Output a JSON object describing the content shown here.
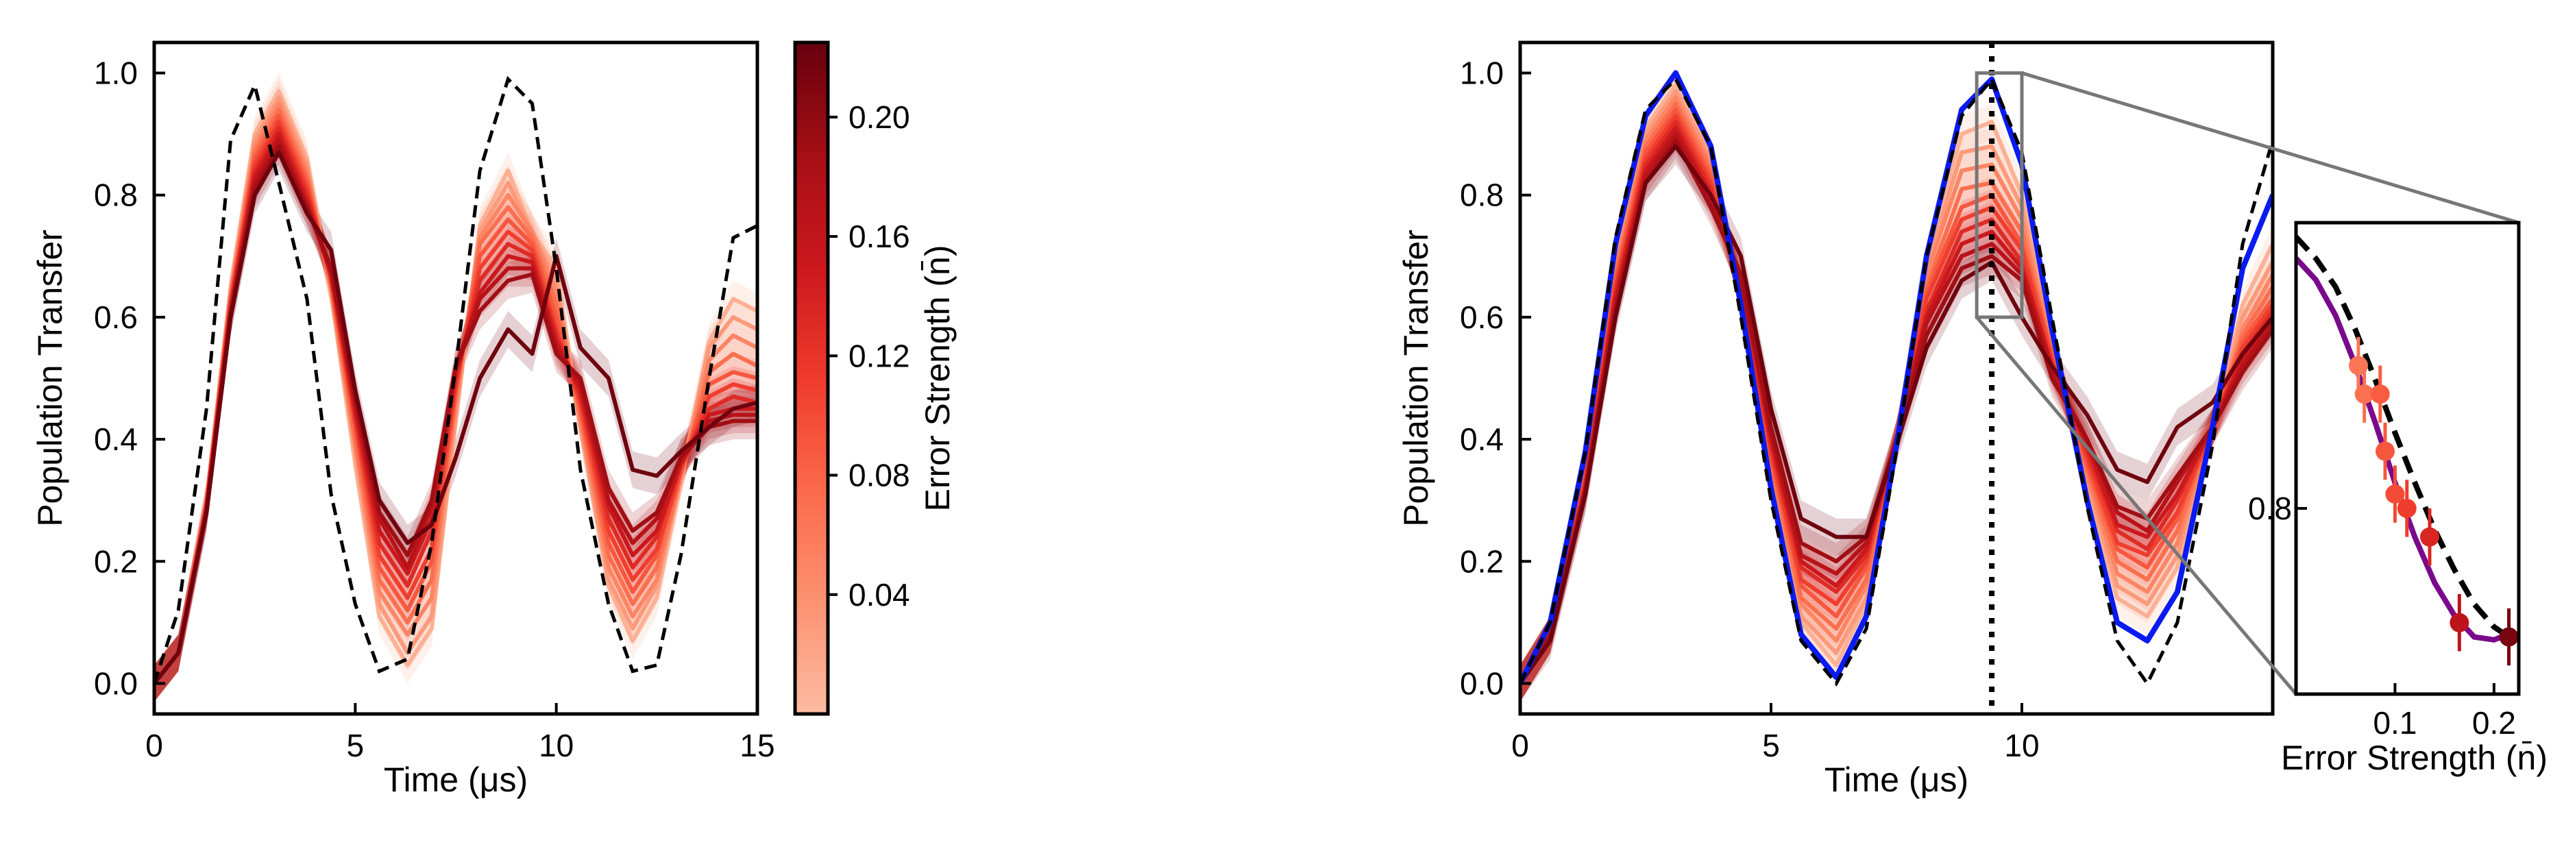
{
  "chart_data": [
    {
      "panel": "left",
      "type": "line",
      "xlabel": "Time (μs)",
      "ylabel": "Population Transfer",
      "xlim": [
        0,
        15
      ],
      "ylim": [
        -0.05,
        1.05
      ],
      "xticks": [
        0,
        5,
        10,
        15
      ],
      "yticks": [
        0.0,
        0.2,
        0.4,
        0.6,
        0.8,
        1.0
      ],
      "xtick_labels": [
        "0",
        "5",
        "10",
        "15"
      ],
      "ytick_labels": [
        "0.0",
        "0.2",
        "0.4",
        "0.6",
        "0.8",
        "1.0"
      ],
      "x": [
        0,
        0.6,
        1.3,
        1.9,
        2.5,
        3.1,
        3.8,
        4.4,
        5.0,
        5.6,
        6.3,
        6.9,
        7.5,
        8.1,
        8.8,
        9.4,
        10.0,
        10.6,
        11.3,
        11.9,
        12.5,
        13.1,
        13.8,
        14.4,
        15.0
      ],
      "ideal": {
        "style": "black dashed",
        "y": [
          0.0,
          0.12,
          0.45,
          0.89,
          0.98,
          0.82,
          0.63,
          0.31,
          0.13,
          0.02,
          0.04,
          0.23,
          0.52,
          0.84,
          0.99,
          0.95,
          0.68,
          0.35,
          0.13,
          0.02,
          0.03,
          0.21,
          0.5,
          0.73,
          0.75
        ]
      },
      "series": [
        {
          "n": 0.01,
          "y": [
            0.0,
            0.05,
            0.3,
            0.65,
            0.9,
            0.97,
            0.86,
            0.64,
            0.36,
            0.11,
            0.03,
            0.09,
            0.43,
            0.75,
            0.84,
            0.74,
            0.68,
            0.42,
            0.16,
            0.07,
            0.14,
            0.33,
            0.56,
            0.63,
            0.61
          ]
        },
        {
          "n": 0.03,
          "y": [
            0.0,
            0.05,
            0.3,
            0.64,
            0.89,
            0.96,
            0.85,
            0.64,
            0.38,
            0.13,
            0.05,
            0.11,
            0.44,
            0.74,
            0.82,
            0.74,
            0.66,
            0.42,
            0.17,
            0.09,
            0.16,
            0.34,
            0.55,
            0.6,
            0.58
          ]
        },
        {
          "n": 0.05,
          "y": [
            0.0,
            0.05,
            0.3,
            0.64,
            0.88,
            0.95,
            0.84,
            0.65,
            0.39,
            0.15,
            0.08,
            0.14,
            0.46,
            0.73,
            0.8,
            0.74,
            0.64,
            0.43,
            0.19,
            0.11,
            0.17,
            0.34,
            0.53,
            0.57,
            0.55
          ]
        },
        {
          "n": 0.07,
          "y": [
            0.0,
            0.05,
            0.3,
            0.63,
            0.87,
            0.94,
            0.83,
            0.65,
            0.4,
            0.17,
            0.1,
            0.17,
            0.47,
            0.72,
            0.78,
            0.73,
            0.62,
            0.44,
            0.21,
            0.13,
            0.19,
            0.34,
            0.51,
            0.54,
            0.52
          ]
        },
        {
          "n": 0.09,
          "y": [
            0.0,
            0.05,
            0.29,
            0.63,
            0.86,
            0.93,
            0.82,
            0.66,
            0.42,
            0.19,
            0.12,
            0.2,
            0.48,
            0.7,
            0.76,
            0.72,
            0.6,
            0.45,
            0.23,
            0.15,
            0.21,
            0.35,
            0.49,
            0.51,
            0.5
          ]
        },
        {
          "n": 0.11,
          "y": [
            0.0,
            0.05,
            0.29,
            0.62,
            0.85,
            0.92,
            0.81,
            0.66,
            0.43,
            0.21,
            0.14,
            0.22,
            0.49,
            0.68,
            0.74,
            0.71,
            0.58,
            0.46,
            0.25,
            0.17,
            0.22,
            0.35,
            0.47,
            0.49,
            0.48
          ]
        },
        {
          "n": 0.13,
          "y": [
            0.0,
            0.05,
            0.29,
            0.62,
            0.84,
            0.91,
            0.8,
            0.67,
            0.44,
            0.23,
            0.16,
            0.25,
            0.5,
            0.66,
            0.72,
            0.7,
            0.57,
            0.47,
            0.27,
            0.19,
            0.24,
            0.36,
            0.45,
            0.47,
            0.46
          ]
        },
        {
          "n": 0.15,
          "y": [
            0.0,
            0.05,
            0.29,
            0.61,
            0.83,
            0.9,
            0.79,
            0.67,
            0.45,
            0.25,
            0.18,
            0.27,
            0.51,
            0.64,
            0.7,
            0.69,
            0.56,
            0.48,
            0.29,
            0.21,
            0.25,
            0.36,
            0.44,
            0.45,
            0.45
          ]
        },
        {
          "n": 0.17,
          "y": [
            0.0,
            0.05,
            0.28,
            0.61,
            0.82,
            0.89,
            0.78,
            0.68,
            0.46,
            0.27,
            0.19,
            0.29,
            0.52,
            0.63,
            0.68,
            0.68,
            0.55,
            0.49,
            0.3,
            0.23,
            0.27,
            0.37,
            0.43,
            0.44,
            0.44
          ]
        },
        {
          "n": 0.19,
          "y": [
            0.0,
            0.05,
            0.28,
            0.6,
            0.81,
            0.88,
            0.78,
            0.68,
            0.47,
            0.28,
            0.21,
            0.3,
            0.52,
            0.61,
            0.66,
            0.67,
            0.54,
            0.5,
            0.32,
            0.25,
            0.28,
            0.37,
            0.42,
            0.43,
            0.43
          ]
        },
        {
          "n": 0.22,
          "y": [
            0.0,
            0.05,
            0.28,
            0.6,
            0.8,
            0.87,
            0.77,
            0.71,
            0.48,
            0.3,
            0.23,
            0.26,
            0.37,
            0.5,
            0.58,
            0.54,
            0.7,
            0.55,
            0.5,
            0.35,
            0.34,
            0.38,
            0.42,
            0.45,
            0.46
          ]
        }
      ]
    },
    {
      "panel": "colorbar",
      "label": "Error Strength (n̄)",
      "range": [
        0.0,
        0.225
      ],
      "ticks": [
        0.04,
        0.08,
        0.12,
        0.16,
        0.2
      ],
      "tick_labels": [
        "0.04",
        "0.08",
        "0.12",
        "0.16",
        "0.20"
      ],
      "colormap": [
        "#fcbba1",
        "#fc9272",
        "#fb6a4a",
        "#ef3b2c",
        "#cb181d",
        "#a50f15",
        "#67000d"
      ]
    },
    {
      "panel": "right",
      "type": "line",
      "xlabel": "Time (μs)",
      "ylabel": "Population Transfer",
      "xlim": [
        0,
        15
      ],
      "ylim": [
        -0.05,
        1.05
      ],
      "xticks": [
        0,
        5,
        10
      ],
      "yticks": [
        0.0,
        0.2,
        0.4,
        0.6,
        0.8,
        1.0
      ],
      "xtick_labels": [
        "0",
        "5",
        "10"
      ],
      "ytick_labels": [
        "0.0",
        "0.2",
        "0.4",
        "0.6",
        "0.8",
        "1.0"
      ],
      "vline_x": 9.4,
      "zoom_box": {
        "x": [
          9.1,
          10.0
        ],
        "y": [
          0.6,
          1.0
        ]
      },
      "x": [
        0,
        0.6,
        1.3,
        1.9,
        2.5,
        3.1,
        3.8,
        4.4,
        5.0,
        5.6,
        6.3,
        6.9,
        7.5,
        8.1,
        8.8,
        9.4,
        10.0,
        10.6,
        11.3,
        11.9,
        12.5,
        13.1,
        13.8,
        14.4,
        15.0
      ],
      "ideal": {
        "style": "black dashed",
        "y": [
          0.0,
          0.1,
          0.38,
          0.73,
          0.94,
          0.99,
          0.88,
          0.6,
          0.3,
          0.07,
          0.0,
          0.09,
          0.38,
          0.7,
          0.93,
          0.99,
          0.87,
          0.6,
          0.29,
          0.07,
          0.0,
          0.1,
          0.39,
          0.72,
          0.89
        ]
      },
      "corrected": {
        "style": "blue solid",
        "y": [
          0.0,
          0.1,
          0.38,
          0.72,
          0.93,
          1.0,
          0.88,
          0.62,
          0.32,
          0.08,
          0.01,
          0.11,
          0.39,
          0.7,
          0.94,
          0.99,
          0.85,
          0.58,
          0.3,
          0.1,
          0.07,
          0.15,
          0.42,
          0.68,
          0.8
        ]
      },
      "series": [
        {
          "n": 0.01,
          "y": [
            0.0,
            0.08,
            0.36,
            0.7,
            0.91,
            0.98,
            0.87,
            0.62,
            0.33,
            0.1,
            0.03,
            0.13,
            0.4,
            0.69,
            0.9,
            0.92,
            0.8,
            0.57,
            0.32,
            0.14,
            0.11,
            0.19,
            0.42,
            0.62,
            0.72
          ]
        },
        {
          "n": 0.03,
          "y": [
            0.0,
            0.08,
            0.35,
            0.69,
            0.9,
            0.97,
            0.86,
            0.63,
            0.34,
            0.11,
            0.05,
            0.14,
            0.4,
            0.68,
            0.87,
            0.88,
            0.78,
            0.56,
            0.33,
            0.16,
            0.13,
            0.21,
            0.42,
            0.6,
            0.69
          ]
        },
        {
          "n": 0.05,
          "y": [
            0.0,
            0.08,
            0.35,
            0.68,
            0.89,
            0.96,
            0.85,
            0.63,
            0.35,
            0.13,
            0.07,
            0.16,
            0.4,
            0.67,
            0.84,
            0.85,
            0.76,
            0.55,
            0.34,
            0.18,
            0.15,
            0.23,
            0.42,
            0.58,
            0.67
          ]
        },
        {
          "n": 0.07,
          "y": [
            0.0,
            0.08,
            0.34,
            0.67,
            0.88,
            0.95,
            0.84,
            0.64,
            0.36,
            0.14,
            0.09,
            0.17,
            0.4,
            0.65,
            0.81,
            0.82,
            0.74,
            0.54,
            0.35,
            0.2,
            0.17,
            0.25,
            0.42,
            0.57,
            0.65
          ]
        },
        {
          "n": 0.09,
          "y": [
            0.0,
            0.08,
            0.34,
            0.66,
            0.87,
            0.94,
            0.83,
            0.64,
            0.37,
            0.16,
            0.11,
            0.19,
            0.4,
            0.64,
            0.78,
            0.8,
            0.72,
            0.54,
            0.36,
            0.22,
            0.19,
            0.27,
            0.42,
            0.56,
            0.63
          ]
        },
        {
          "n": 0.11,
          "y": [
            0.0,
            0.08,
            0.33,
            0.65,
            0.86,
            0.93,
            0.82,
            0.65,
            0.38,
            0.17,
            0.13,
            0.2,
            0.4,
            0.63,
            0.76,
            0.78,
            0.71,
            0.53,
            0.37,
            0.23,
            0.21,
            0.28,
            0.42,
            0.55,
            0.62
          ]
        },
        {
          "n": 0.13,
          "y": [
            0.0,
            0.08,
            0.33,
            0.64,
            0.85,
            0.92,
            0.81,
            0.65,
            0.39,
            0.19,
            0.15,
            0.21,
            0.4,
            0.61,
            0.74,
            0.76,
            0.69,
            0.52,
            0.38,
            0.25,
            0.22,
            0.3,
            0.42,
            0.54,
            0.61
          ]
        },
        {
          "n": 0.15,
          "y": [
            0.0,
            0.08,
            0.32,
            0.63,
            0.84,
            0.91,
            0.8,
            0.66,
            0.4,
            0.2,
            0.16,
            0.22,
            0.4,
            0.6,
            0.72,
            0.74,
            0.68,
            0.52,
            0.39,
            0.26,
            0.24,
            0.31,
            0.42,
            0.53,
            0.6
          ]
        },
        {
          "n": 0.17,
          "y": [
            0.0,
            0.08,
            0.32,
            0.62,
            0.83,
            0.9,
            0.79,
            0.66,
            0.41,
            0.21,
            0.18,
            0.23,
            0.4,
            0.59,
            0.7,
            0.72,
            0.67,
            0.51,
            0.4,
            0.28,
            0.25,
            0.33,
            0.42,
            0.52,
            0.59
          ]
        },
        {
          "n": 0.19,
          "y": [
            0.0,
            0.08,
            0.31,
            0.61,
            0.82,
            0.89,
            0.78,
            0.67,
            0.42,
            0.23,
            0.2,
            0.24,
            0.4,
            0.57,
            0.68,
            0.7,
            0.66,
            0.5,
            0.4,
            0.29,
            0.27,
            0.34,
            0.42,
            0.51,
            0.58
          ]
        },
        {
          "n": 0.22,
          "y": [
            0.0,
            0.07,
            0.31,
            0.6,
            0.82,
            0.88,
            0.8,
            0.7,
            0.45,
            0.27,
            0.24,
            0.24,
            0.39,
            0.55,
            0.66,
            0.69,
            0.6,
            0.52,
            0.44,
            0.35,
            0.33,
            0.42,
            0.46,
            0.54,
            0.6
          ]
        }
      ]
    },
    {
      "panel": "inset",
      "type": "scatter",
      "xlabel": "Error Strength (n̄)",
      "xlim": [
        0.0,
        0.225
      ],
      "ylim": [
        0.67,
        1.0
      ],
      "xticks": [
        0.1,
        0.2
      ],
      "xtick_labels": [
        "0.1",
        "0.2"
      ],
      "yticks": [
        0.8
      ],
      "ytick_labels": [
        "0.8"
      ],
      "points": [
        {
          "x": 0.063,
          "y": 0.9,
          "err": 0.02
        },
        {
          "x": 0.069,
          "y": 0.88,
          "err": 0.02
        },
        {
          "x": 0.085,
          "y": 0.88,
          "err": 0.02
        },
        {
          "x": 0.09,
          "y": 0.84,
          "err": 0.02
        },
        {
          "x": 0.1,
          "y": 0.81,
          "err": 0.02
        },
        {
          "x": 0.112,
          "y": 0.8,
          "err": 0.02
        },
        {
          "x": 0.135,
          "y": 0.78,
          "err": 0.02
        },
        {
          "x": 0.165,
          "y": 0.72,
          "err": 0.02
        },
        {
          "x": 0.215,
          "y": 0.71,
          "err": 0.02
        }
      ],
      "fit": {
        "style": "purple solid",
        "x": [
          0.0,
          0.02,
          0.04,
          0.06,
          0.08,
          0.1,
          0.12,
          0.14,
          0.16,
          0.18,
          0.2,
          0.215
        ],
        "y": [
          0.975,
          0.96,
          0.935,
          0.9,
          0.86,
          0.818,
          0.78,
          0.748,
          0.725,
          0.71,
          0.708,
          0.712
        ]
      },
      "ideal": {
        "style": "black dashed",
        "x": [
          0.0,
          0.02,
          0.04,
          0.06,
          0.08,
          0.1,
          0.12,
          0.14,
          0.16,
          0.18,
          0.2,
          0.215
        ],
        "y": [
          0.99,
          0.975,
          0.955,
          0.925,
          0.89,
          0.853,
          0.818,
          0.785,
          0.757,
          0.733,
          0.717,
          0.71
        ]
      }
    }
  ]
}
